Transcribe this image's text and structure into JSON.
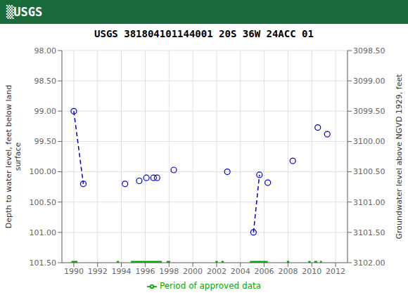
{
  "chart_data": {
    "type": "scatter",
    "title": "USGS 381804101144001 20S 36W 24ACC 01",
    "annotations": [
      {
        "text": "▒USGS",
        "color": "#1a6b3c"
      }
    ],
    "y_label": "Depth to water level, feet below land\nsurface",
    "y2_label": "Groundwater level above NGVD 1929, feet",
    "xlim": [
      1989,
      2013
    ],
    "xticks": [
      1990,
      1992,
      1994,
      1996,
      1998,
      2000,
      2002,
      2004,
      2006,
      2008,
      2010,
      2012
    ],
    "ylim": [
      101.5,
      98.0
    ],
    "yticks": [
      {
        "value": 98.0,
        "label": "98.00"
      },
      {
        "value": 98.5,
        "label": "98.50"
      },
      {
        "value": 99.0,
        "label": "99.00"
      },
      {
        "value": 99.5,
        "label": "99.50"
      },
      {
        "value": 100.0,
        "label": "100.00"
      },
      {
        "value": 100.5,
        "label": "100.50"
      },
      {
        "value": 101.0,
        "label": "101.00"
      },
      {
        "value": 101.5,
        "label": "101.50"
      }
    ],
    "y2lim": [
      3102.0,
      3098.5
    ],
    "y2ticks": [
      {
        "value": 3098.5,
        "label": "3098.50"
      },
      {
        "value": 3099.0,
        "label": "3099.00"
      },
      {
        "value": 3099.5,
        "label": "3099.50"
      },
      {
        "value": 3100.0,
        "label": "3100.00"
      },
      {
        "value": 3100.5,
        "label": "3100.50"
      },
      {
        "value": 3101.0,
        "label": "3101.00"
      },
      {
        "value": 3101.5,
        "label": "3101.50"
      },
      {
        "value": 3102.0,
        "label": "3102.00"
      }
    ],
    "grid": true,
    "legend": "bottom",
    "series": [
      {
        "type": "line",
        "line_style": "dashed",
        "color": "#0000cc",
        "x": [
          1990.0,
          1990.8
        ],
        "values": [
          99.0,
          100.2
        ]
      },
      {
        "type": "line",
        "line_style": "dashed",
        "color": "#0000cc",
        "x": [
          2005.1,
          2005.6
        ],
        "values": [
          101.0,
          100.05
        ]
      },
      {
        "type": "scatter",
        "marker": "open_circle",
        "color": "#0000cc",
        "x": [
          1990.0,
          1990.8,
          1994.3,
          1995.5,
          1996.1,
          1996.7,
          1997.0,
          1998.4,
          2002.9,
          2005.1,
          2005.6,
          2006.3,
          2008.4,
          2010.5,
          2011.3
        ],
        "values": [
          99.0,
          100.2,
          100.2,
          100.15,
          100.1,
          100.1,
          100.1,
          99.97,
          100.0,
          101.0,
          100.05,
          100.18,
          99.82,
          99.27,
          99.38
        ]
      },
      {
        "name": "Period of approved data",
        "type": "line",
        "color": "#00aa00",
        "periods": [
          [
            1989.8,
            1990.3
          ],
          [
            1993.6,
            1993.8
          ],
          [
            1994.8,
            1997.4
          ],
          [
            1997.8,
            1998.1
          ],
          [
            2001.9,
            2002.1
          ],
          [
            2002.4,
            2002.6
          ],
          [
            2004.8,
            2006.3
          ],
          [
            2007.9,
            2008.1
          ],
          [
            2009.7,
            2009.9
          ],
          [
            2010.2,
            2010.45
          ],
          [
            2010.7,
            2010.85
          ]
        ],
        "value": 101.5
      }
    ]
  }
}
